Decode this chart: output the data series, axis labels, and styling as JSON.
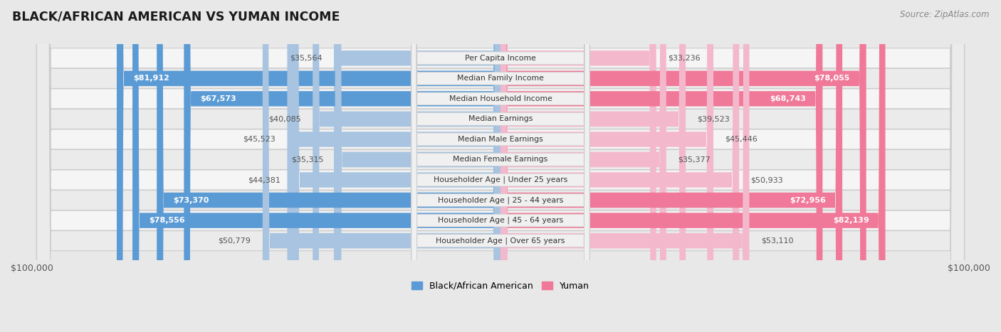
{
  "title": "BLACK/AFRICAN AMERICAN VS YUMAN INCOME",
  "source": "Source: ZipAtlas.com",
  "categories": [
    "Per Capita Income",
    "Median Family Income",
    "Median Household Income",
    "Median Earnings",
    "Median Male Earnings",
    "Median Female Earnings",
    "Householder Age | Under 25 years",
    "Householder Age | 25 - 44 years",
    "Householder Age | 45 - 64 years",
    "Householder Age | Over 65 years"
  ],
  "black_values": [
    35564,
    81912,
    67573,
    40085,
    45523,
    35315,
    44381,
    73370,
    78556,
    50779
  ],
  "yuman_values": [
    33236,
    78055,
    68743,
    39523,
    45446,
    35377,
    50933,
    72956,
    82139,
    53110
  ],
  "black_labels": [
    "$35,564",
    "$81,912",
    "$67,573",
    "$40,085",
    "$45,523",
    "$35,315",
    "$44,381",
    "$73,370",
    "$78,556",
    "$50,779"
  ],
  "yuman_labels": [
    "$33,236",
    "$78,055",
    "$68,743",
    "$39,523",
    "$45,446",
    "$35,377",
    "$50,933",
    "$72,956",
    "$82,139",
    "$53,110"
  ],
  "max_val": 100000,
  "blue_light": "#a8c4e0",
  "blue_dark": "#5b9bd5",
  "pink_light": "#f4b8cc",
  "pink_dark": "#f07898",
  "bg_color": "#e8e8e8",
  "row_bg_even": "#f5f5f5",
  "row_bg_odd": "#ebebeb",
  "label_bg": "#f0f0f0",
  "white": "#ffffff",
  "text_dark": "#555555",
  "text_white": "#ffffff",
  "large_threshold": 60000,
  "figsize": [
    14.06,
    4.67
  ],
  "dpi": 100
}
